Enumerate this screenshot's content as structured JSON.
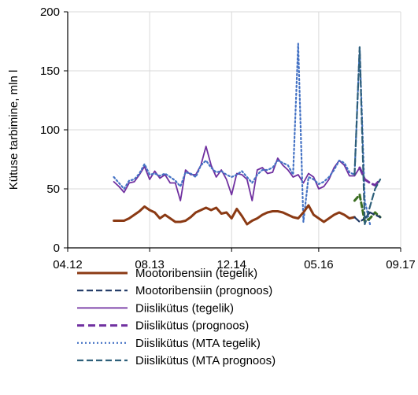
{
  "chart_data": {
    "type": "line",
    "title": "",
    "xlabel": "",
    "ylabel": "Kütuse tarbimine, mln l",
    "ylim": [
      0,
      200
    ],
    "yticks": [
      "0",
      "50",
      "100",
      "150",
      "200"
    ],
    "xlim": [
      "2012-04",
      "2017-09"
    ],
    "xticks": [
      "04.12",
      "08.13",
      "12.14",
      "05.16",
      "09.17"
    ],
    "grid": true,
    "legend_position": "bottom",
    "colors": {
      "mootoribensiin_tegelik": "#8B3A14",
      "mootoribensiin_prognoos": "#1F3864",
      "diislikutus_tegelik": "#7030A0",
      "diislikutus_prognoos": "#7030A0",
      "diislikutus_mta_tegelik": "#4472C4",
      "diislikutus_mta_prognoos": "#2E5F7A",
      "forecast_green": "#3B6E22"
    },
    "series": [
      {
        "name": "Mootoribensiin (tegelik)",
        "style": "solid-thick",
        "x": [
          "2013-01",
          "2013-02",
          "2013-03",
          "2013-04",
          "2013-05",
          "2013-06",
          "2013-07",
          "2013-08",
          "2013-09",
          "2013-10",
          "2013-11",
          "2013-12",
          "2014-01",
          "2014-02",
          "2014-03",
          "2014-04",
          "2014-05",
          "2014-06",
          "2014-07",
          "2014-08",
          "2014-09",
          "2014-10",
          "2014-11",
          "2014-12",
          "2015-01",
          "2015-02",
          "2015-03",
          "2015-04",
          "2015-05",
          "2015-06",
          "2015-07",
          "2015-08",
          "2015-09",
          "2015-10",
          "2015-11",
          "2015-12",
          "2016-01",
          "2016-02",
          "2016-03",
          "2016-04",
          "2016-05",
          "2016-06",
          "2016-07",
          "2016-08",
          "2016-09",
          "2016-10",
          "2016-11",
          "2016-12"
        ],
        "values": [
          23,
          23,
          23,
          25,
          28,
          31,
          35,
          32,
          30,
          25,
          28,
          25,
          22,
          22,
          23,
          26,
          30,
          32,
          34,
          32,
          34,
          29,
          30,
          25,
          33,
          27,
          20,
          23,
          25,
          28,
          30,
          31,
          31,
          30,
          28,
          26,
          25,
          30,
          36,
          28,
          25,
          22,
          25,
          28,
          30,
          28,
          25,
          26
        ]
      },
      {
        "name": "Mootoribensiin (prognoos)",
        "style": "dashed",
        "x": [
          "2016-12",
          "2017-01",
          "2017-02",
          "2017-03",
          "2017-04",
          "2017-05"
        ],
        "values": [
          26,
          22,
          25,
          30,
          28,
          26
        ]
      },
      {
        "name": "Diislikütus (tegelik)",
        "style": "solid",
        "x": [
          "2013-01",
          "2013-02",
          "2013-03",
          "2013-04",
          "2013-05",
          "2013-06",
          "2013-07",
          "2013-08",
          "2013-09",
          "2013-10",
          "2013-11",
          "2013-12",
          "2014-01",
          "2014-02",
          "2014-03",
          "2014-04",
          "2014-05",
          "2014-06",
          "2014-07",
          "2014-08",
          "2014-09",
          "2014-10",
          "2014-11",
          "2014-12",
          "2015-01",
          "2015-02",
          "2015-03",
          "2015-04",
          "2015-05",
          "2015-06",
          "2015-07",
          "2015-08",
          "2015-09",
          "2015-10",
          "2015-11",
          "2015-12",
          "2016-01",
          "2016-02",
          "2016-03",
          "2016-04",
          "2016-05",
          "2016-06",
          "2016-07",
          "2016-08",
          "2016-09",
          "2016-10",
          "2016-11",
          "2016-12",
          "2017-01"
        ],
        "values": [
          56,
          52,
          47,
          55,
          56,
          62,
          69,
          58,
          65,
          59,
          62,
          55,
          55,
          40,
          66,
          62,
          62,
          70,
          86,
          70,
          60,
          66,
          58,
          45,
          63,
          62,
          58,
          40,
          66,
          68,
          63,
          64,
          76,
          70,
          66,
          60,
          62,
          55,
          63,
          60,
          50,
          52,
          58,
          68,
          74,
          70,
          61,
          61,
          68
        ]
      },
      {
        "name": "Diislikütus (prognoos)",
        "style": "dashed-thick",
        "x": [
          "2017-01",
          "2017-02",
          "2017-03",
          "2017-04",
          "2017-05"
        ],
        "values": [
          68,
          58,
          55,
          53,
          58
        ]
      },
      {
        "name": "Diislikütus (MTA tegelik)",
        "style": "dotted",
        "x": [
          "2013-01",
          "2013-02",
          "2013-03",
          "2013-04",
          "2013-05",
          "2013-06",
          "2013-07",
          "2013-08",
          "2013-09",
          "2013-10",
          "2013-11",
          "2013-12",
          "2014-01",
          "2014-02",
          "2014-03",
          "2014-04",
          "2014-05",
          "2014-06",
          "2014-07",
          "2014-08",
          "2014-09",
          "2014-10",
          "2014-11",
          "2014-12",
          "2015-01",
          "2015-02",
          "2015-03",
          "2015-04",
          "2015-05",
          "2015-06",
          "2015-07",
          "2015-08",
          "2015-09",
          "2015-10",
          "2015-11",
          "2015-12",
          "2016-01",
          "2016-02",
          "2016-03",
          "2016-04",
          "2016-05",
          "2016-06",
          "2016-07",
          "2016-08",
          "2016-09",
          "2016-10",
          "2016-11",
          "2016-12",
          "2017-01",
          "2017-02",
          "2017-03"
        ],
        "values": [
          60,
          55,
          50,
          57,
          58,
          63,
          71,
          62,
          63,
          61,
          63,
          60,
          57,
          52,
          64,
          63,
          60,
          70,
          74,
          68,
          64,
          65,
          62,
          60,
          62,
          65,
          60,
          55,
          62,
          66,
          66,
          68,
          74,
          72,
          70,
          62,
          173,
          22,
          60,
          58,
          54,
          56,
          60,
          66,
          74,
          72,
          64,
          62,
          170,
          40,
          20
        ]
      },
      {
        "name": "Diislikütus (MTA prognoos)",
        "style": "dashed",
        "x": [
          "2016-12",
          "2017-01",
          "2017-02",
          "2017-03",
          "2017-04",
          "2017-05"
        ],
        "values": [
          62,
          170,
          20,
          35,
          50,
          58
        ]
      },
      {
        "name": "",
        "style": "dashed-green",
        "x": [
          "2016-12",
          "2017-01",
          "2017-02",
          "2017-03",
          "2017-04",
          "2017-05"
        ],
        "values": [
          40,
          45,
          22,
          25,
          30,
          26
        ]
      }
    ]
  }
}
